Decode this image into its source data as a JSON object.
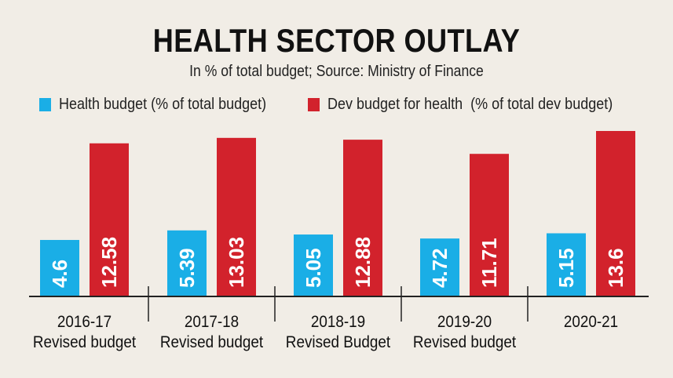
{
  "chart_data": {
    "type": "bar",
    "title": "HEALTH SECTOR OUTLAY",
    "subtitle": "In % of total budget; Source: Ministry of Finance",
    "categories": [
      [
        "2016-17",
        "Revised budget"
      ],
      [
        "2017-18",
        "Revised budget"
      ],
      [
        "2018-19",
        "Revised Budget"
      ],
      [
        "2019-20",
        "Revised budget"
      ],
      [
        "2020-21"
      ]
    ],
    "series": [
      {
        "name": "Health budget (% of total budget)",
        "color": "#1aaee6",
        "values": [
          4.6,
          5.39,
          5.05,
          4.72,
          5.15
        ],
        "labels": [
          "4.6",
          "5.39",
          "5.05",
          "4.72",
          "5.15"
        ]
      },
      {
        "name": "Dev budget for health  (% of total dev budget)",
        "color": "#d2222c",
        "values": [
          12.58,
          13.03,
          12.88,
          11.71,
          13.6
        ],
        "labels": [
          "12.58",
          "13.03",
          "12.88",
          "11.71",
          "13.6"
        ]
      }
    ],
    "xlabel": "",
    "ylabel": "",
    "ylim": [
      0,
      14
    ],
    "grid": false,
    "legend_position": "top"
  }
}
